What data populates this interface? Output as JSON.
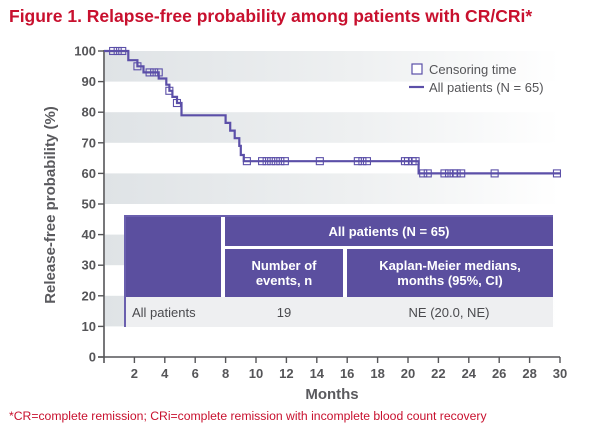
{
  "title": "Figure 1. Relapse-free probability among patients with CR/CRi*",
  "footnote": "*CR=complete remission;  CRi=complete remission with incomplete blood count recovery",
  "colors": {
    "title": "#c8102e",
    "series": "#5b4fa8",
    "table_header": "#5b4f9f",
    "band": "#dfe3e6"
  },
  "legend": {
    "censor_label": "Censoring time",
    "line_label": "All patients (N = 65)"
  },
  "table": {
    "group_header": "All patients (N = 65)",
    "col1_header_line1": "Number of",
    "col1_header_line2": "events, n",
    "col2_header_line1": "Kaplan-Meier medians,",
    "col2_header_line2": "months (95%, CI)",
    "row_label": "All patients",
    "events": "19",
    "median": "NE (20.0, NE)"
  },
  "chart_data": {
    "type": "line",
    "subtype": "kaplan-meier-step",
    "title": "Figure 1. Relapse-free probability among patients with CR/CRi*",
    "xlabel": "Months",
    "ylabel": "Release-free probability (%)",
    "xlim": [
      0,
      30
    ],
    "ylim": [
      0,
      100
    ],
    "xticks": [
      2,
      4,
      6,
      8,
      10,
      12,
      14,
      16,
      18,
      20,
      22,
      24,
      26,
      28,
      30
    ],
    "yticks": [
      0,
      10,
      20,
      30,
      40,
      50,
      60,
      70,
      80,
      90,
      100
    ],
    "grid": "alternating horizontal bands",
    "legend_position": "top-right",
    "series": [
      {
        "name": "All patients (N = 65)",
        "steps": [
          [
            0,
            100
          ],
          [
            1.6,
            100
          ],
          [
            1.6,
            97
          ],
          [
            2.2,
            97
          ],
          [
            2.2,
            95
          ],
          [
            2.6,
            95
          ],
          [
            2.6,
            93
          ],
          [
            3.6,
            93
          ],
          [
            3.6,
            91
          ],
          [
            4.1,
            91
          ],
          [
            4.1,
            89
          ],
          [
            4.3,
            89
          ],
          [
            4.3,
            87
          ],
          [
            4.5,
            87
          ],
          [
            4.5,
            85
          ],
          [
            4.8,
            85
          ],
          [
            4.8,
            83
          ],
          [
            5.1,
            83
          ],
          [
            5.1,
            79
          ],
          [
            8.0,
            79
          ],
          [
            8.0,
            76.5
          ],
          [
            8.3,
            76.5
          ],
          [
            8.3,
            74
          ],
          [
            8.6,
            74
          ],
          [
            8.6,
            71.5
          ],
          [
            8.9,
            71.5
          ],
          [
            8.9,
            69
          ],
          [
            9.0,
            69
          ],
          [
            9.0,
            66
          ],
          [
            9.2,
            66
          ],
          [
            9.2,
            64
          ],
          [
            20.7,
            64
          ],
          [
            20.7,
            60
          ],
          [
            30,
            60
          ]
        ],
        "censor_times": [
          [
            0.6,
            100
          ],
          [
            0.9,
            100
          ],
          [
            1.2,
            100
          ],
          [
            2.2,
            95
          ],
          [
            3.0,
            93
          ],
          [
            3.3,
            93
          ],
          [
            3.6,
            93
          ],
          [
            4.3,
            87
          ],
          [
            4.8,
            83
          ],
          [
            9.4,
            64
          ],
          [
            10.4,
            64
          ],
          [
            10.7,
            64
          ],
          [
            11.0,
            64
          ],
          [
            11.3,
            64
          ],
          [
            11.6,
            64
          ],
          [
            11.9,
            64
          ],
          [
            14.2,
            64
          ],
          [
            16.7,
            64
          ],
          [
            17.0,
            64
          ],
          [
            17.3,
            64
          ],
          [
            19.8,
            64
          ],
          [
            20.0,
            64
          ],
          [
            20.3,
            64
          ],
          [
            20.5,
            64
          ],
          [
            21.0,
            60
          ],
          [
            21.3,
            60
          ],
          [
            22.4,
            60
          ],
          [
            22.7,
            60
          ],
          [
            23.0,
            60
          ],
          [
            23.2,
            60
          ],
          [
            23.5,
            60
          ],
          [
            25.7,
            60
          ],
          [
            29.8,
            60
          ]
        ]
      }
    ]
  }
}
